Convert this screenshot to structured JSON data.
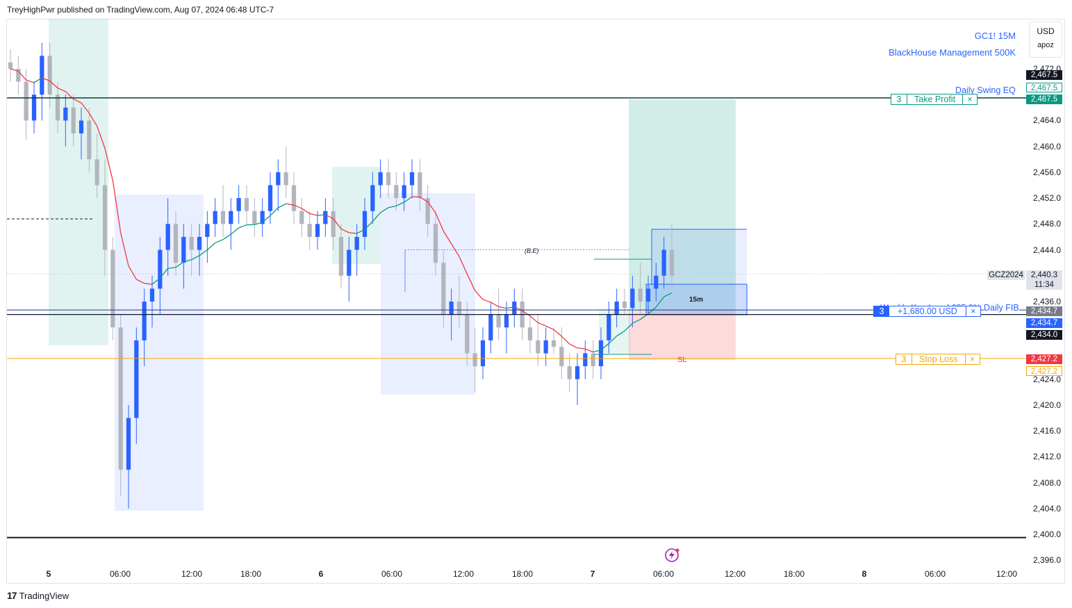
{
  "header": {
    "publish_text": "TreyHighPwr published on TradingView.com, Aug 07, 2024 06:48 UTC-7"
  },
  "legend": {
    "symbol": "GC1! 15M",
    "indicator": "BlackHouse Management 500K"
  },
  "currency": {
    "code": "USD",
    "mode": "apoz"
  },
  "brand": {
    "name": "TradingView"
  },
  "colors": {
    "up": "#2962ff",
    "down": "#b2b5be",
    "ma_red": "#f23645",
    "ma_green": "#089981",
    "take_profit": "#089981",
    "stop_loss": "#f7a600",
    "position": "#2962ff"
  },
  "price_axis": {
    "ticks": [
      "2,472.0",
      "2,464.0",
      "2,460.0",
      "2,456.0",
      "2,452.0",
      "2,448.0",
      "2,444.0",
      "2,436.0",
      "2,424.0",
      "2,420.0",
      "2,416.0",
      "2,412.0",
      "2,408.0",
      "2,404.0",
      "2,400.0",
      "2,396.0"
    ]
  },
  "time_axis": {
    "labels": [
      "5",
      "06:00",
      "12:00",
      "18:00",
      "6",
      "06:00",
      "12:00",
      "18:00",
      "7",
      "06:00",
      "12:00",
      "18:00",
      "8",
      "06:00",
      "12:00"
    ]
  },
  "price_badges": {
    "top_black": "2,467.5",
    "top_outline": "2,467.5",
    "tp": "2,467.5",
    "symbol_name": "GCZ2024",
    "last_price": "2,440.3",
    "countdown": "11:34",
    "pos_gray": "2,434.7",
    "pos_blue": "2,434.7",
    "level_black": "2,434.0",
    "sl_red": "2,427.2",
    "sl_outline": "2,427.2"
  },
  "annotations": {
    "daily_swing_eq": "Daily Swing EQ",
    "daily_fib": "Daily FIB",
    "daily_fib_obscured": "Weekly Key Level 685.0%",
    "be": "(B.E)",
    "sl": "SL",
    "tf": "15m"
  },
  "orders": {
    "take_profit": {
      "qty": "3",
      "label": "Take Profit",
      "close": "×"
    },
    "position": {
      "qty": "3",
      "label": "+1,680.00 USD",
      "close": "×"
    },
    "stop_loss": {
      "qty": "3",
      "label": "Stop Loss",
      "close": "×"
    }
  },
  "chart_data": {
    "type": "candlestick",
    "symbol": "GC1!",
    "timeframe": "15M",
    "x_unit": "15-minute bars from Aug 04, 2024 22:45 (UTC-7)",
    "ylim": [
      2395,
      2475
    ],
    "levels": {
      "take_profit": 2467.5,
      "stop_loss": 2427.2,
      "position_entry": 2434.7,
      "daily_fib": 2434.0,
      "last_price": 2440.3,
      "bottom_line": 2399.5,
      "break_even": 2444.0
    },
    "ohlc": [
      [
        2473,
        2475,
        2470,
        2472
      ],
      [
        2472,
        2474,
        2468,
        2470
      ],
      [
        2470,
        2472,
        2461,
        2464
      ],
      [
        2464,
        2470,
        2462,
        2468
      ],
      [
        2468,
        2476,
        2464,
        2474
      ],
      [
        2474,
        2476,
        2466,
        2468
      ],
      [
        2468,
        2470,
        2462,
        2464
      ],
      [
        2464,
        2468,
        2460,
        2466
      ],
      [
        2466,
        2468,
        2460,
        2462
      ],
      [
        2462,
        2466,
        2458,
        2464
      ],
      [
        2464,
        2466,
        2456,
        2458
      ],
      [
        2458,
        2462,
        2452,
        2454
      ],
      [
        2454,
        2458,
        2440,
        2444
      ],
      [
        2444,
        2446,
        2430,
        2432
      ],
      [
        2432,
        2434,
        2406,
        2410
      ],
      [
        2410,
        2420,
        2404,
        2418
      ],
      [
        2418,
        2432,
        2414,
        2430
      ],
      [
        2430,
        2438,
        2426,
        2436
      ],
      [
        2436,
        2440,
        2432,
        2438
      ],
      [
        2438,
        2446,
        2434,
        2444
      ],
      [
        2444,
        2452,
        2440,
        2448
      ],
      [
        2448,
        2450,
        2440,
        2442
      ],
      [
        2442,
        2448,
        2438,
        2446
      ],
      [
        2446,
        2448,
        2440,
        2444
      ],
      [
        2444,
        2448,
        2440,
        2446
      ],
      [
        2446,
        2450,
        2442,
        2448
      ],
      [
        2448,
        2452,
        2446,
        2450
      ],
      [
        2450,
        2454,
        2446,
        2448
      ],
      [
        2448,
        2452,
        2444,
        2450
      ],
      [
        2450,
        2454,
        2448,
        2452
      ],
      [
        2452,
        2454,
        2448,
        2450
      ],
      [
        2450,
        2452,
        2446,
        2448
      ],
      [
        2448,
        2452,
        2446,
        2450
      ],
      [
        2450,
        2456,
        2448,
        2454
      ],
      [
        2454,
        2458,
        2450,
        2456
      ],
      [
        2456,
        2460,
        2452,
        2454
      ],
      [
        2454,
        2456,
        2448,
        2450
      ],
      [
        2450,
        2452,
        2446,
        2448
      ],
      [
        2448,
        2450,
        2444,
        2446
      ],
      [
        2446,
        2450,
        2444,
        2448
      ],
      [
        2448,
        2452,
        2446,
        2450
      ],
      [
        2450,
        2452,
        2444,
        2446
      ],
      [
        2446,
        2448,
        2438,
        2440
      ],
      [
        2440,
        2446,
        2436,
        2444
      ],
      [
        2444,
        2448,
        2440,
        2446
      ],
      [
        2446,
        2452,
        2444,
        2450
      ],
      [
        2450,
        2456,
        2448,
        2454
      ],
      [
        2454,
        2458,
        2452,
        2456
      ],
      [
        2456,
        2458,
        2452,
        2454
      ],
      [
        2454,
        2456,
        2450,
        2452
      ],
      [
        2452,
        2456,
        2450,
        2454
      ],
      [
        2454,
        2458,
        2452,
        2456
      ],
      [
        2456,
        2458,
        2450,
        2452
      ],
      [
        2452,
        2454,
        2446,
        2448
      ],
      [
        2448,
        2450,
        2440,
        2442
      ],
      [
        2442,
        2444,
        2432,
        2434
      ],
      [
        2434,
        2438,
        2430,
        2436
      ],
      [
        2436,
        2440,
        2432,
        2434
      ],
      [
        2434,
        2436,
        2426,
        2428
      ],
      [
        2428,
        2432,
        2422,
        2426
      ],
      [
        2426,
        2432,
        2424,
        2430
      ],
      [
        2430,
        2436,
        2428,
        2434
      ],
      [
        2434,
        2438,
        2430,
        2432
      ],
      [
        2432,
        2436,
        2428,
        2434
      ],
      [
        2434,
        2438,
        2432,
        2436
      ],
      [
        2436,
        2438,
        2430,
        2432
      ],
      [
        2432,
        2434,
        2428,
        2430
      ],
      [
        2430,
        2434,
        2426,
        2428
      ],
      [
        2428,
        2432,
        2426,
        2430
      ],
      [
        2430,
        2432,
        2428,
        2429
      ],
      [
        2429,
        2432,
        2424,
        2426
      ],
      [
        2426,
        2428,
        2422,
        2424
      ],
      [
        2424,
        2428,
        2420,
        2426
      ],
      [
        2426,
        2430,
        2424,
        2428
      ],
      [
        2428,
        2430,
        2424,
        2426
      ],
      [
        2426,
        2432,
        2424,
        2430
      ],
      [
        2430,
        2436,
        2428,
        2434
      ],
      [
        2434,
        2438,
        2432,
        2436
      ],
      [
        2436,
        2438,
        2434,
        2435
      ],
      [
        2435,
        2440,
        2432,
        2438
      ],
      [
        2438,
        2442,
        2434,
        2436
      ],
      [
        2436,
        2440,
        2434,
        2438
      ],
      [
        2438,
        2442,
        2436,
        2440
      ],
      [
        2440,
        2446,
        2438,
        2444
      ],
      [
        2444,
        2448,
        2438,
        2440
      ]
    ]
  }
}
